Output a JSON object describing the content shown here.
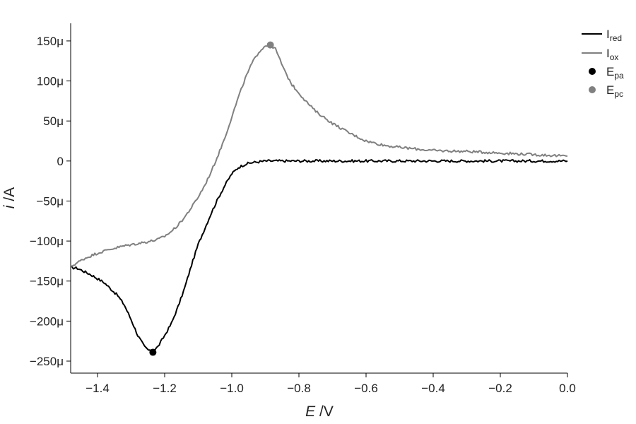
{
  "chart_data": {
    "type": "line",
    "xlabel": {
      "var": "E",
      "unit": " /V"
    },
    "ylabel": {
      "var": "i",
      "unit": " /A"
    },
    "xlim": [
      -1.48,
      0.0
    ],
    "ylim": [
      -265,
      172
    ],
    "xticks": [
      {
        "value": -1.4,
        "label": "−1.4"
      },
      {
        "value": -1.2,
        "label": "−1.2"
      },
      {
        "value": -1.0,
        "label": "−1.0"
      },
      {
        "value": -0.8,
        "label": "−0.8"
      },
      {
        "value": -0.6,
        "label": "−0.6"
      },
      {
        "value": -0.4,
        "label": "−0.4"
      },
      {
        "value": -0.2,
        "label": "−0.2"
      },
      {
        "value": 0.0,
        "label": "0.0"
      }
    ],
    "yticks": [
      {
        "value": 150,
        "label": "150μ"
      },
      {
        "value": 100,
        "label": "100μ"
      },
      {
        "value": 50,
        "label": "50μ"
      },
      {
        "value": 0,
        "label": "0"
      },
      {
        "value": -50,
        "label": "−50μ"
      },
      {
        "value": -100,
        "label": "−100μ"
      },
      {
        "value": -150,
        "label": "−150μ"
      },
      {
        "value": -200,
        "label": "−200μ"
      },
      {
        "value": -250,
        "label": "−250μ"
      }
    ],
    "grid": false,
    "legend_position": "top-right",
    "y_unit_note": "values in microamperes",
    "series": [
      {
        "name": "I",
        "name_sub": "red",
        "color": "#000000",
        "x": [
          -1.48,
          -1.46,
          -1.44,
          -1.42,
          -1.4,
          -1.38,
          -1.36,
          -1.34,
          -1.32,
          -1.3,
          -1.28,
          -1.26,
          -1.24,
          -1.22,
          -1.2,
          -1.18,
          -1.16,
          -1.14,
          -1.12,
          -1.1,
          -1.08,
          -1.06,
          -1.04,
          -1.02,
          -1.0,
          -0.98,
          -0.96,
          -0.94,
          -0.92,
          -0.9,
          -0.85,
          -0.8,
          -0.75,
          -0.7,
          -0.65,
          -0.6,
          -0.55,
          -0.5,
          -0.45,
          -0.4,
          -0.35,
          -0.3,
          -0.25,
          -0.2,
          -0.15,
          -0.1,
          -0.05,
          0.0
        ],
        "y": [
          -133,
          -134,
          -138,
          -142,
          -147,
          -152,
          -160,
          -168,
          -180,
          -198,
          -218,
          -232,
          -239,
          -232,
          -218,
          -203,
          -182,
          -158,
          -130,
          -104,
          -84,
          -64,
          -46,
          -30,
          -16,
          -8,
          -4,
          -2,
          -1,
          0,
          0,
          0,
          0,
          0,
          0,
          0,
          0,
          0,
          0,
          0,
          0,
          0,
          0,
          0,
          0,
          0,
          0,
          0
        ]
      },
      {
        "name": "I",
        "name_sub": "ox",
        "color": "#808080",
        "x": [
          -1.48,
          -1.44,
          -1.4,
          -1.36,
          -1.32,
          -1.28,
          -1.24,
          -1.22,
          -1.2,
          -1.18,
          -1.16,
          -1.14,
          -1.12,
          -1.1,
          -1.08,
          -1.06,
          -1.04,
          -1.02,
          -1.0,
          -0.98,
          -0.96,
          -0.94,
          -0.92,
          -0.9,
          -0.885,
          -0.87,
          -0.86,
          -0.84,
          -0.82,
          -0.8,
          -0.78,
          -0.75,
          -0.7,
          -0.65,
          -0.6,
          -0.55,
          -0.5,
          -0.45,
          -0.4,
          -0.3,
          -0.2,
          -0.1,
          0.0
        ],
        "y": [
          -132,
          -122,
          -115,
          -110,
          -106,
          -103,
          -100,
          -98,
          -94,
          -88,
          -80,
          -70,
          -58,
          -45,
          -30,
          -12,
          8,
          30,
          55,
          80,
          103,
          122,
          136,
          144,
          145,
          140,
          130,
          110,
          95,
          85,
          75,
          62,
          47,
          35,
          25,
          20,
          17,
          15,
          13,
          12,
          10,
          8,
          6
        ]
      }
    ],
    "markers": [
      {
        "name": "E",
        "name_sub": "pa",
        "x": -1.235,
        "y": -239,
        "color": "#000000"
      },
      {
        "name": "E",
        "name_sub": "pc",
        "x": -0.885,
        "y": 145,
        "color": "#808080"
      }
    ]
  }
}
